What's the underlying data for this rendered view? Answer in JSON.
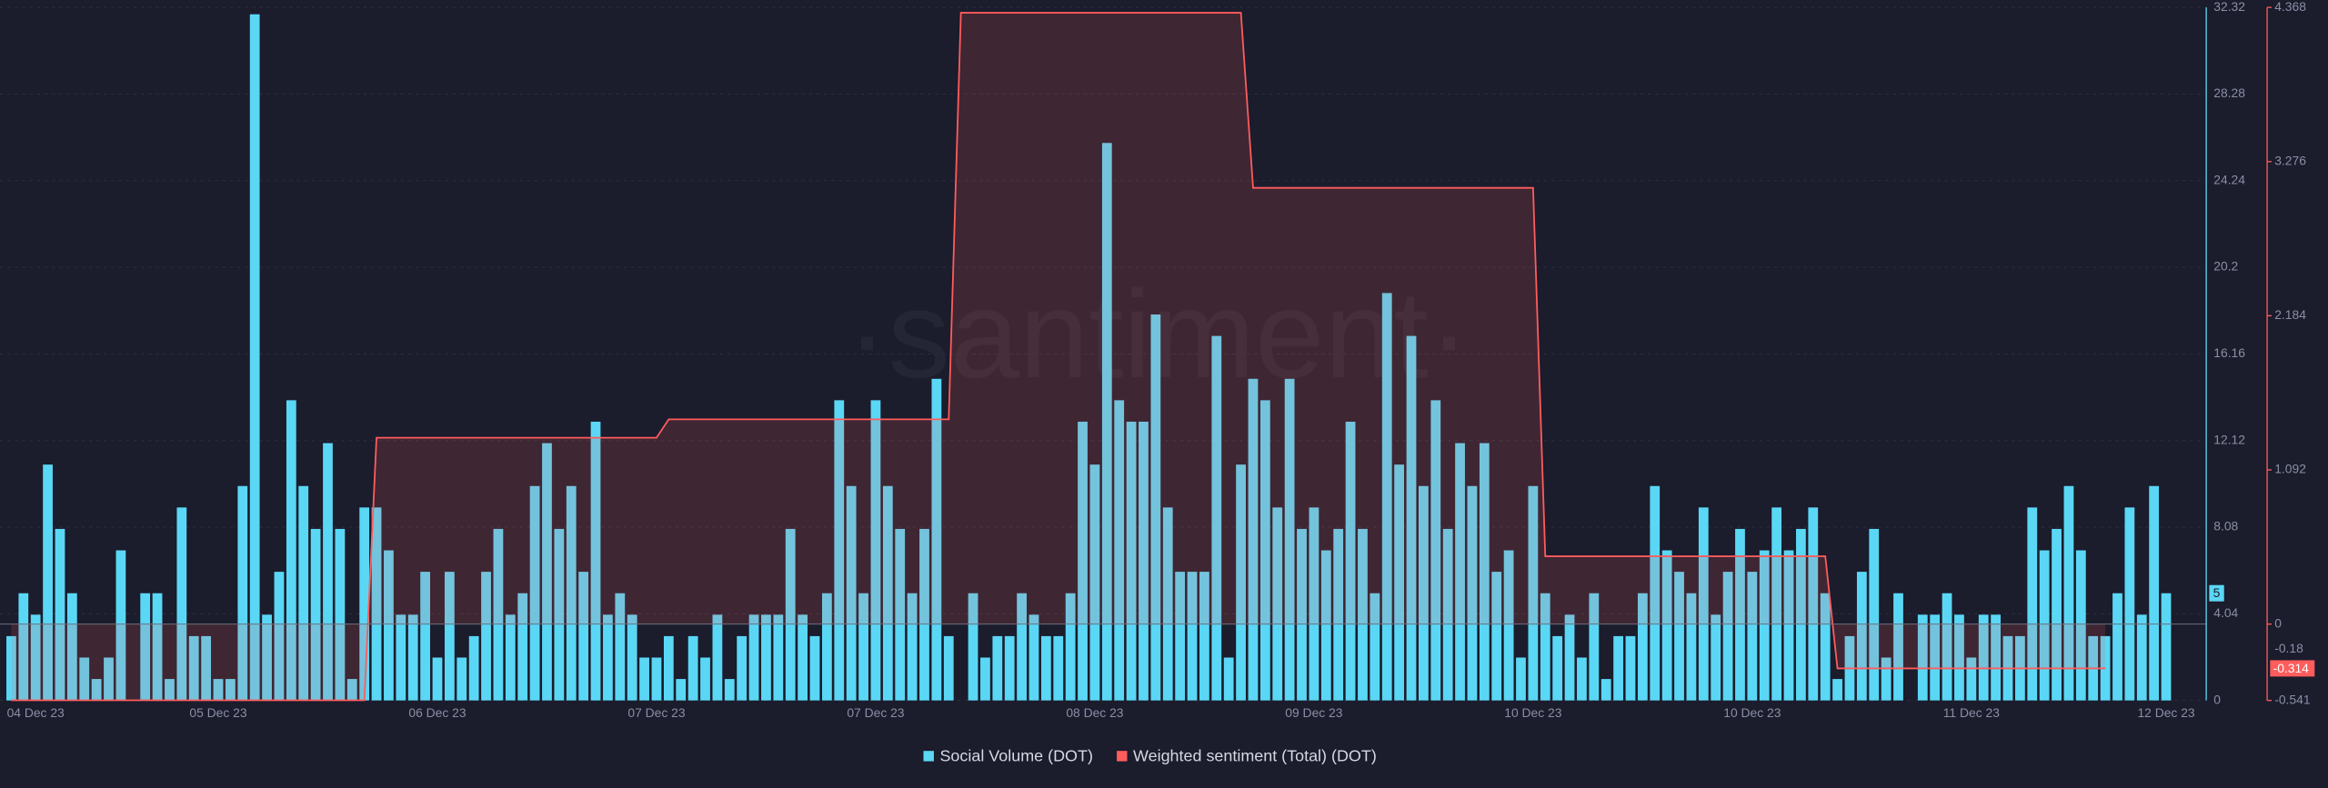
{
  "chart_data": {
    "type": "bar-line",
    "watermark": "·santiment·",
    "categories": [
      null,
      null,
      "04 Dec 23",
      null,
      null,
      null,
      null,
      null,
      null,
      null,
      null,
      null,
      null,
      null,
      null,
      null,
      null,
      "05 Dec 23",
      null,
      null,
      null,
      null,
      null,
      null,
      null,
      null,
      null,
      null,
      null,
      null,
      null,
      null,
      null,
      null,
      null,
      "06 Dec 23",
      null,
      null,
      null,
      null,
      null,
      null,
      null,
      null,
      null,
      null,
      null,
      null,
      null,
      null,
      null,
      null,
      null,
      "07 Dec 23",
      null,
      null,
      null,
      null,
      null,
      null,
      null,
      null,
      null,
      null,
      null,
      null,
      null,
      null,
      null,
      null,
      null,
      "07 Dec 23",
      null,
      null,
      null,
      null,
      null,
      null,
      null,
      null,
      null,
      null,
      null,
      null,
      null,
      null,
      null,
      null,
      null,
      "08 Dec 23",
      null,
      null,
      null,
      null,
      null,
      null,
      null,
      null,
      null,
      null,
      null,
      null,
      null,
      null,
      null,
      null,
      null,
      "09 Dec 23",
      null,
      null,
      null,
      null,
      null,
      null,
      null,
      null,
      null,
      null,
      null,
      null,
      null,
      null,
      null,
      null,
      null,
      "10 Dec 23",
      null,
      null,
      null,
      null,
      null,
      null,
      null,
      null,
      null,
      null,
      null,
      null,
      null,
      null,
      null,
      null,
      null,
      "10 Dec 23",
      null,
      null,
      null,
      null,
      null,
      null,
      null,
      null,
      null,
      null,
      null,
      null,
      null,
      null,
      null,
      null,
      null,
      "11 Dec 23",
      null,
      null,
      null,
      null,
      null,
      null,
      null,
      null,
      null,
      null,
      null,
      null,
      null,
      null,
      null,
      "12 Dec 23"
    ],
    "series": [
      {
        "name": "Social Volume (DOT)",
        "color": "#5ad7f5",
        "kind": "bar",
        "values": [
          3,
          5,
          4,
          11,
          8,
          5,
          2,
          1,
          2,
          7,
          0,
          5,
          5,
          1,
          9,
          3,
          3,
          1,
          1,
          10,
          32,
          4,
          6,
          14,
          10,
          8,
          12,
          8,
          1,
          9,
          9,
          7,
          4,
          4,
          6,
          2,
          6,
          2,
          3,
          6,
          8,
          4,
          5,
          10,
          12,
          8,
          10,
          6,
          13,
          4,
          5,
          4,
          2,
          2,
          3,
          1,
          3,
          2,
          4,
          1,
          3,
          4,
          4,
          4,
          8,
          4,
          3,
          5,
          14,
          10,
          5,
          14,
          10,
          8,
          5,
          8,
          15,
          3,
          0,
          5,
          2,
          3,
          3,
          5,
          4,
          3,
          3,
          5,
          13,
          11,
          26,
          14,
          13,
          13,
          18,
          9,
          6,
          6,
          6,
          17,
          2,
          11,
          15,
          14,
          9,
          15,
          8,
          9,
          7,
          8,
          13,
          8,
          5,
          19,
          11,
          17,
          10,
          14,
          8,
          12,
          10,
          12,
          6,
          7,
          2,
          10,
          5,
          3,
          4,
          2,
          5,
          1,
          3,
          3,
          5,
          10,
          7,
          6,
          5,
          9,
          4,
          6,
          8,
          6,
          7,
          9,
          7,
          8,
          9,
          5,
          1,
          3,
          6,
          8,
          2,
          5,
          0,
          4,
          4,
          5,
          4,
          2,
          4,
          4,
          3,
          3,
          9,
          7,
          8,
          10,
          7,
          3,
          3,
          5,
          9,
          4,
          10,
          5
        ]
      },
      {
        "name": "Weighted sentiment (Total) (DOT)",
        "color": "#ff5c5c",
        "kind": "line",
        "axis": "y2",
        "values": [
          -0.54,
          -0.54,
          -0.54,
          -0.54,
          -0.54,
          -0.54,
          -0.54,
          -0.54,
          -0.54,
          -0.54,
          -0.54,
          -0.54,
          -0.54,
          -0.54,
          -0.54,
          -0.54,
          -0.54,
          -0.54,
          -0.54,
          -0.54,
          -0.54,
          -0.54,
          -0.54,
          -0.54,
          -0.54,
          -0.54,
          -0.54,
          -0.54,
          -0.54,
          -0.54,
          1.32,
          1.32,
          1.32,
          1.32,
          1.32,
          1.32,
          1.32,
          1.32,
          1.32,
          1.32,
          1.32,
          1.32,
          1.32,
          1.32,
          1.32,
          1.32,
          1.32,
          1.32,
          1.32,
          1.32,
          1.32,
          1.32,
          1.32,
          1.32,
          1.45,
          1.45,
          1.45,
          1.45,
          1.45,
          1.45,
          1.45,
          1.45,
          1.45,
          1.45,
          1.45,
          1.45,
          1.45,
          1.45,
          1.45,
          1.45,
          1.45,
          1.45,
          1.45,
          1.45,
          1.45,
          1.45,
          1.45,
          1.45,
          4.33,
          4.33,
          4.33,
          4.33,
          4.33,
          4.33,
          4.33,
          4.33,
          4.33,
          4.33,
          4.33,
          4.33,
          4.33,
          4.33,
          4.33,
          4.33,
          4.33,
          4.33,
          4.33,
          4.33,
          4.33,
          4.33,
          4.33,
          4.33,
          3.09,
          3.09,
          3.09,
          3.09,
          3.09,
          3.09,
          3.09,
          3.09,
          3.09,
          3.09,
          3.09,
          3.09,
          3.09,
          3.09,
          3.09,
          3.09,
          3.09,
          3.09,
          3.09,
          3.09,
          3.09,
          3.09,
          3.09,
          3.09,
          0.48,
          0.48,
          0.48,
          0.48,
          0.48,
          0.48,
          0.48,
          0.48,
          0.48,
          0.48,
          0.48,
          0.48,
          0.48,
          0.48,
          0.48,
          0.48,
          0.48,
          0.48,
          0.48,
          0.48,
          0.48,
          0.48,
          0.48,
          0.48,
          -0.314,
          -0.314,
          -0.314,
          -0.314,
          -0.314,
          -0.314,
          -0.314,
          -0.314,
          -0.314,
          -0.314,
          -0.314,
          -0.314,
          -0.314,
          -0.314,
          -0.314,
          -0.314,
          -0.314,
          -0.314,
          -0.314,
          -0.314,
          -0.314,
          -0.314,
          -0.314,
          null,
          null,
          null,
          null,
          null
        ]
      }
    ],
    "ylim": [
      0,
      32.32
    ],
    "yticks": [
      0,
      4.04,
      8.08,
      12.12,
      16.16,
      20.2,
      24.24,
      28.28,
      32.32
    ],
    "y2lim": [
      -0.541,
      4.368
    ],
    "y2ticks": [
      -0.541,
      0,
      1.092,
      2.184,
      3.276,
      4.368
    ],
    "y_current": 5,
    "y2_current": -0.314,
    "y2_reference": -0.18,
    "grid": true
  }
}
